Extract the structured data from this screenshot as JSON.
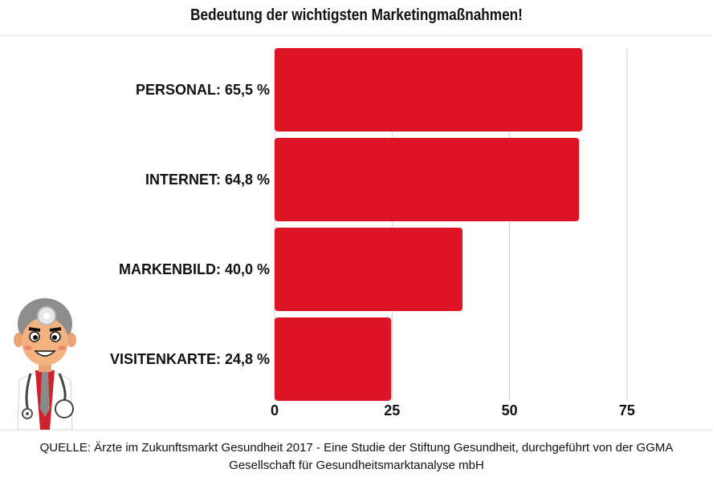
{
  "title": "Bedeutung der wichtigsten Marketingmaßnahmen!",
  "source": "QUELLE: Ärzte im Zukunftsmarkt Gesundheit 2017 - Eine Studie der Stiftung Gesundheit, durchgeführt von der GGMA Gesellschaft für Gesundheitsmarktanalyse mbH",
  "colors": {
    "bar": "#dc1424",
    "grid": "#d0d0d0"
  },
  "chart_data": {
    "type": "bar",
    "orientation": "horizontal",
    "categories": [
      "PERSONAL: 65,5 %",
      "INTERNET: 64,8 %",
      "MARKENBILD: 40,0 %",
      "VISITENKARTE: 24,8 %"
    ],
    "values": [
      65.5,
      64.8,
      40.0,
      24.8
    ],
    "xticks": [
      "0",
      "25",
      "50",
      "75"
    ],
    "xlim": [
      0,
      90
    ],
    "grid": true
  }
}
